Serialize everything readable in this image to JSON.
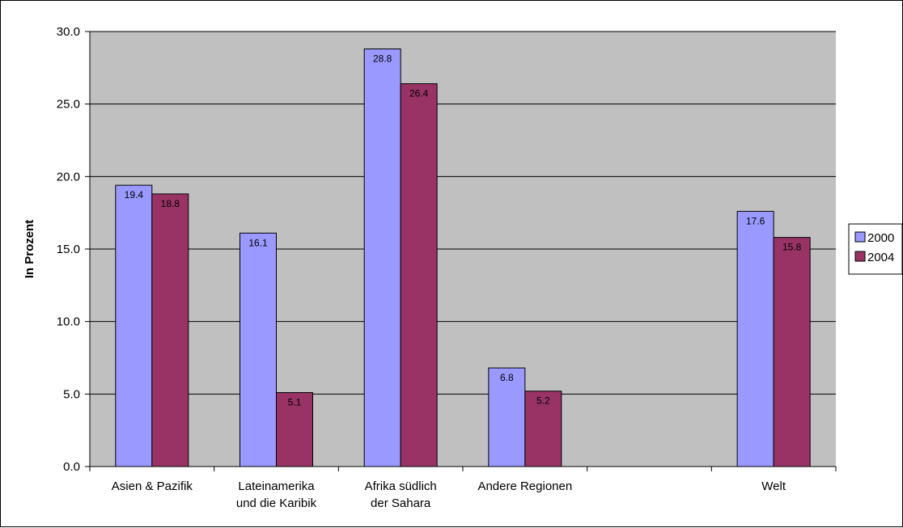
{
  "chart_data": {
    "type": "bar",
    "categories": [
      [
        "Asien & Pazifik"
      ],
      [
        "Lateinamerika",
        "und die Karibik"
      ],
      [
        "Afrika südlich",
        "der Sahara"
      ],
      [
        "Andere Regionen"
      ],
      [
        ""
      ],
      [
        "Welt"
      ]
    ],
    "series": [
      {
        "name": "2000",
        "values": [
          19.4,
          16.1,
          28.8,
          6.8,
          null,
          17.6
        ],
        "color": "#9999FF"
      },
      {
        "name": "2004",
        "values": [
          18.8,
          5.1,
          26.4,
          5.2,
          null,
          15.8
        ],
        "color": "#993366"
      }
    ],
    "value_labels": {
      "2000": [
        "19.4",
        "16.1",
        "28.8",
        "6.8",
        "",
        "17.6"
      ],
      "2004": [
        "18.8",
        "5.1",
        "26.4",
        "5.2",
        "",
        "15.8"
      ]
    },
    "title": "",
    "xlabel": "",
    "ylabel": "In Prozent",
    "ylim": [
      0,
      30
    ],
    "yticks": [
      "0.0",
      "5.0",
      "10.0",
      "15.0",
      "20.0",
      "25.0",
      "30.0"
    ],
    "ytick_values": [
      0,
      5,
      10,
      15,
      20,
      25,
      30
    ],
    "grid": true,
    "plot_background": "#C0C0C0",
    "legend_position": "right"
  }
}
